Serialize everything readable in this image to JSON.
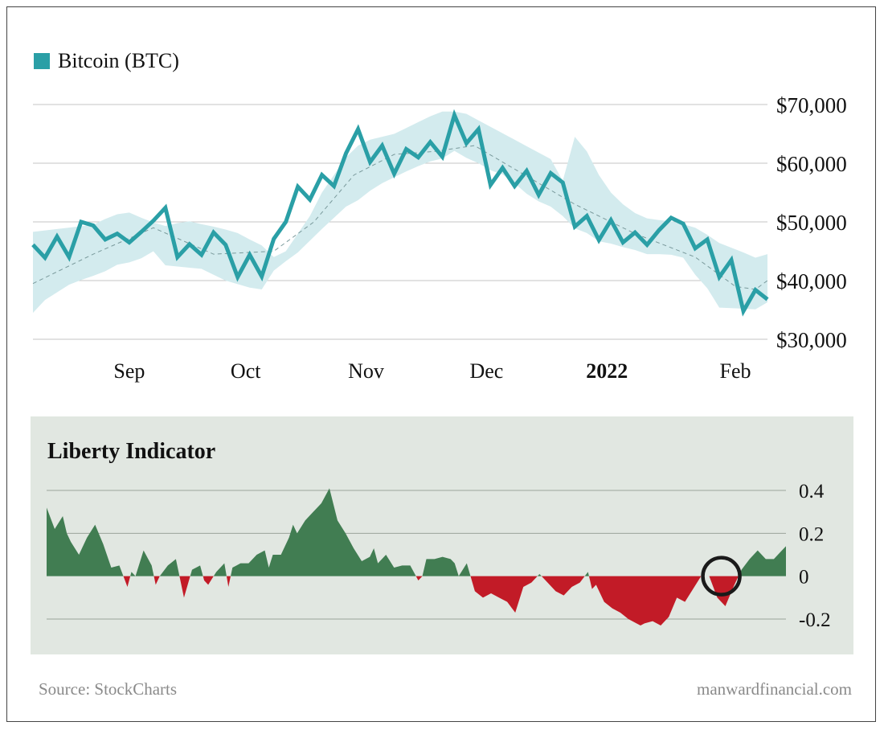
{
  "legend": {
    "label": "Bitcoin (BTC)"
  },
  "indicator": {
    "title": "Liberty Indicator"
  },
  "footer": {
    "source": "Source: StockCharts",
    "credit": "manwardfinancial.com"
  },
  "colors": {
    "line": "#2a9fa6",
    "band": "#d3ebee",
    "ma": "#7a9a9c",
    "grid": "#c4c4c4",
    "positive": "#417d52",
    "negative": "#c21b27",
    "panel_bg": "#e1e7e1",
    "marker": "#1a1a1a"
  },
  "chart_data": [
    {
      "type": "line",
      "series": [
        {
          "name": "Bitcoin (BTC)",
          "role": "price",
          "x": [
            0,
            3,
            6,
            9,
            12,
            15,
            18,
            21,
            24,
            27,
            30,
            33,
            36,
            39,
            42,
            45,
            48,
            51,
            54,
            57,
            60,
            63,
            66,
            69,
            72,
            75,
            78,
            81,
            84,
            87,
            90,
            93,
            96,
            99,
            102,
            105,
            108,
            111,
            114,
            117,
            120,
            123,
            126,
            129,
            132,
            135,
            138,
            141,
            144,
            147,
            150,
            153,
            156,
            159,
            162,
            165,
            168,
            171,
            174,
            177,
            180,
            183
          ],
          "y": [
            46100,
            43900,
            47500,
            44000,
            50000,
            49400,
            47000,
            48000,
            46500,
            48300,
            50200,
            52400,
            44000,
            46200,
            44400,
            48200,
            46100,
            40600,
            44400,
            40700,
            47100,
            50000,
            56000,
            53800,
            58000,
            56100,
            61700,
            65800,
            60200,
            63000,
            58200,
            62400,
            61000,
            63600,
            61100,
            68200,
            63400,
            65800,
            56300,
            59200,
            56100,
            58700,
            54600,
            58300,
            56700,
            49200,
            51000,
            46900,
            50300,
            46500,
            48200,
            46100,
            48600,
            50700,
            49700,
            45500,
            47000,
            40600,
            43500,
            34800,
            38400,
            36800
          ]
        },
        {
          "name": "",
          "role": "moving-average",
          "x": [
            0,
            15,
            30,
            45,
            60,
            70,
            80,
            90,
            100,
            110,
            120,
            135,
            150,
            165,
            175,
            180,
            183
          ],
          "y": [
            39500,
            44500,
            49000,
            44500,
            45000,
            50000,
            58000,
            61500,
            62000,
            63000,
            59000,
            53000,
            48000,
            44000,
            39000,
            38500,
            40000
          ]
        },
        {
          "name": "",
          "role": "band-upper",
          "x": [
            0,
            15,
            18,
            21,
            24,
            27,
            30,
            33,
            36,
            39,
            42,
            45,
            48,
            51,
            54,
            57,
            60,
            63,
            66,
            69,
            72,
            75,
            78,
            81,
            84,
            87,
            90,
            93,
            96,
            99,
            102,
            105,
            108,
            111,
            114,
            117,
            120,
            123,
            126,
            129,
            132,
            135,
            138,
            141,
            144,
            147,
            150,
            153,
            156,
            159,
            162,
            165,
            168,
            171,
            174,
            177,
            180,
            183
          ],
          "y": [
            48300,
            49500,
            50500,
            51300,
            51600,
            50700,
            49900,
            49300,
            49800,
            50100,
            49600,
            49200,
            48700,
            48100,
            47000,
            46000,
            44000,
            45000,
            48000,
            51000,
            55000,
            58000,
            61000,
            63000,
            64000,
            64500,
            65000,
            66000,
            67000,
            68000,
            68800,
            68800,
            68400,
            67300,
            66200,
            65100,
            64000,
            62900,
            61800,
            60700,
            57000,
            64500,
            62000,
            58000,
            55000,
            53000,
            51500,
            50600,
            50300,
            50100,
            49600,
            49000,
            47800,
            46400,
            45600,
            44800,
            43900,
            44500
          ]
        },
        {
          "name": "",
          "role": "band-lower",
          "x": [
            0,
            3,
            6,
            9,
            12,
            15,
            18,
            21,
            24,
            27,
            30,
            33,
            36,
            39,
            42,
            45,
            48,
            51,
            54,
            57,
            60,
            63,
            66,
            69,
            72,
            75,
            78,
            81,
            84,
            87,
            90,
            93,
            96,
            99,
            102,
            105,
            108,
            111,
            114,
            117,
            120,
            123,
            126,
            129,
            132,
            135,
            138,
            141,
            144,
            147,
            150,
            153,
            156,
            159,
            162,
            165,
            168,
            171,
            174,
            177,
            180,
            183
          ],
          "y": [
            34500,
            36700,
            38000,
            39300,
            40100,
            40800,
            41600,
            42700,
            43100,
            43800,
            45000,
            42600,
            42400,
            42200,
            42000,
            41000,
            40000,
            39400,
            38800,
            38500,
            41700,
            43300,
            44800,
            46800,
            48800,
            50700,
            52600,
            53700,
            55300,
            56600,
            57600,
            58600,
            59500,
            60300,
            60800,
            62100,
            60900,
            60000,
            58800,
            58100,
            56600,
            54800,
            53500,
            52600,
            51000,
            48900,
            48100,
            46700,
            46300,
            45700,
            45200,
            44500,
            44500,
            44400,
            43900,
            41000,
            38700,
            35400,
            35300,
            35200,
            35100,
            36300
          ]
        }
      ],
      "x_tick_labels": [
        "Sep",
        "Oct",
        "Nov",
        "Dec",
        "2022",
        "Feb"
      ],
      "x_tick_positions": [
        24,
        53,
        83,
        113,
        143,
        175
      ],
      "y_ticks": [
        30000,
        40000,
        50000,
        60000,
        70000
      ],
      "y_tick_labels": [
        "$30,000",
        "$40,000",
        "$50,000",
        "$60,000",
        "$70,000"
      ],
      "xlim": [
        0,
        183
      ],
      "ylim": [
        30000,
        70000
      ],
      "grid": true,
      "legend": "top-left"
    },
    {
      "type": "area",
      "title": "Liberty Indicator",
      "x": [
        0,
        2,
        4,
        5,
        6,
        8,
        10,
        12,
        14,
        16,
        18,
        20,
        21,
        22,
        24,
        26,
        27,
        28,
        30,
        32,
        34,
        36,
        38,
        39,
        40,
        42,
        44,
        45,
        46,
        47,
        48,
        50,
        52,
        54,
        55,
        56,
        58,
        60,
        61,
        62,
        64,
        66,
        68,
        70,
        72,
        74,
        76,
        78,
        80,
        81,
        82,
        84,
        86,
        88,
        90,
        92,
        93,
        94,
        96,
        98,
        100,
        101,
        102,
        103,
        104,
        106,
        108,
        110,
        112,
        114,
        116,
        118,
        120,
        122,
        124,
        126,
        128,
        130,
        132,
        134,
        135,
        136,
        138,
        140,
        142,
        144,
        146,
        147,
        148,
        150,
        152,
        154,
        156,
        158,
        160,
        162,
        164,
        166,
        168,
        170,
        172,
        174,
        175,
        176,
        178,
        180,
        182,
        183
      ],
      "y": [
        0.32,
        0.22,
        0.28,
        0.2,
        0.16,
        0.1,
        0.18,
        0.24,
        0.15,
        0.04,
        0.05,
        -0.05,
        0.02,
        0.0,
        0.12,
        0.05,
        -0.04,
        0.0,
        0.05,
        0.08,
        -0.1,
        0.03,
        0.05,
        -0.02,
        -0.04,
        0.02,
        0.06,
        -0.05,
        0.04,
        0.05,
        0.06,
        0.06,
        0.1,
        0.12,
        0.04,
        0.1,
        0.1,
        0.18,
        0.24,
        0.2,
        0.26,
        0.3,
        0.34,
        0.41,
        0.26,
        0.2,
        0.13,
        0.07,
        0.09,
        0.13,
        0.06,
        0.1,
        0.04,
        0.05,
        0.05,
        -0.02,
        0.0,
        0.08,
        0.08,
        0.09,
        0.08,
        0.06,
        0.0,
        0.03,
        0.06,
        -0.07,
        -0.1,
        -0.08,
        -0.1,
        -0.12,
        -0.17,
        -0.05,
        -0.03,
        0.01,
        -0.03,
        -0.07,
        -0.09,
        -0.05,
        -0.03,
        0.02,
        -0.06,
        -0.04,
        -0.12,
        -0.15,
        -0.17,
        -0.2,
        -0.22,
        -0.23,
        -0.22,
        -0.21,
        -0.23,
        -0.19,
        -0.1,
        -0.12,
        -0.06,
        0.0,
        0.0,
        -0.1,
        -0.14,
        -0.05,
        0.03,
        0.08,
        0.1,
        0.12,
        0.08,
        0.08,
        0.12,
        0.14
      ],
      "y_ticks": [
        -0.2,
        0,
        0.2,
        0.4
      ],
      "y_tick_labels": [
        "-0.2",
        "0",
        "0.2",
        "0.4"
      ],
      "xlim": [
        0,
        183
      ],
      "ylim": [
        -0.2,
        0.4
      ],
      "annotation": {
        "type": "circle",
        "x": 167,
        "y": 0.0
      },
      "grid": true
    }
  ]
}
